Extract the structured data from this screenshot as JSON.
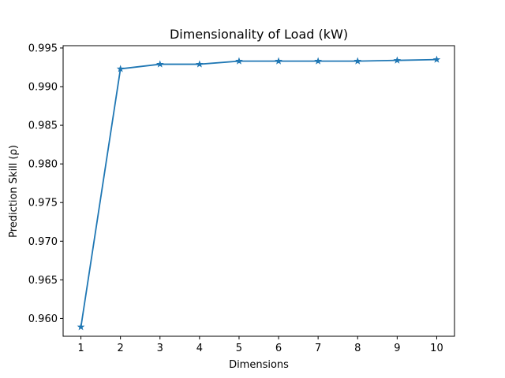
{
  "chart_data": {
    "type": "line",
    "title": "Dimensionality of Load (kW)",
    "xlabel": "Dimensions",
    "ylabel": "Prediction Skill (ρ)",
    "x": [
      1,
      2,
      3,
      4,
      5,
      6,
      7,
      8,
      9,
      10
    ],
    "xlim": [
      0.55,
      10.45
    ],
    "ylim": [
      0.9577,
      0.9953
    ],
    "x_ticks": [
      "1",
      "2",
      "3",
      "4",
      "5",
      "6",
      "7",
      "8",
      "9",
      "10"
    ],
    "y_ticks": [
      0.96,
      0.965,
      0.97,
      0.975,
      0.98,
      0.985,
      0.99,
      0.995
    ],
    "y_tick_labels": [
      "0.960",
      "0.965",
      "0.970",
      "0.975",
      "0.980",
      "0.985",
      "0.990",
      "0.995"
    ],
    "grid": false,
    "series": [
      {
        "values": [
          0.9589,
          0.9923,
          0.9929,
          0.9929,
          0.9933,
          0.9933,
          0.9933,
          0.9933,
          0.9934,
          0.9935
        ],
        "color": "#1f77b4",
        "marker": "star"
      }
    ]
  }
}
